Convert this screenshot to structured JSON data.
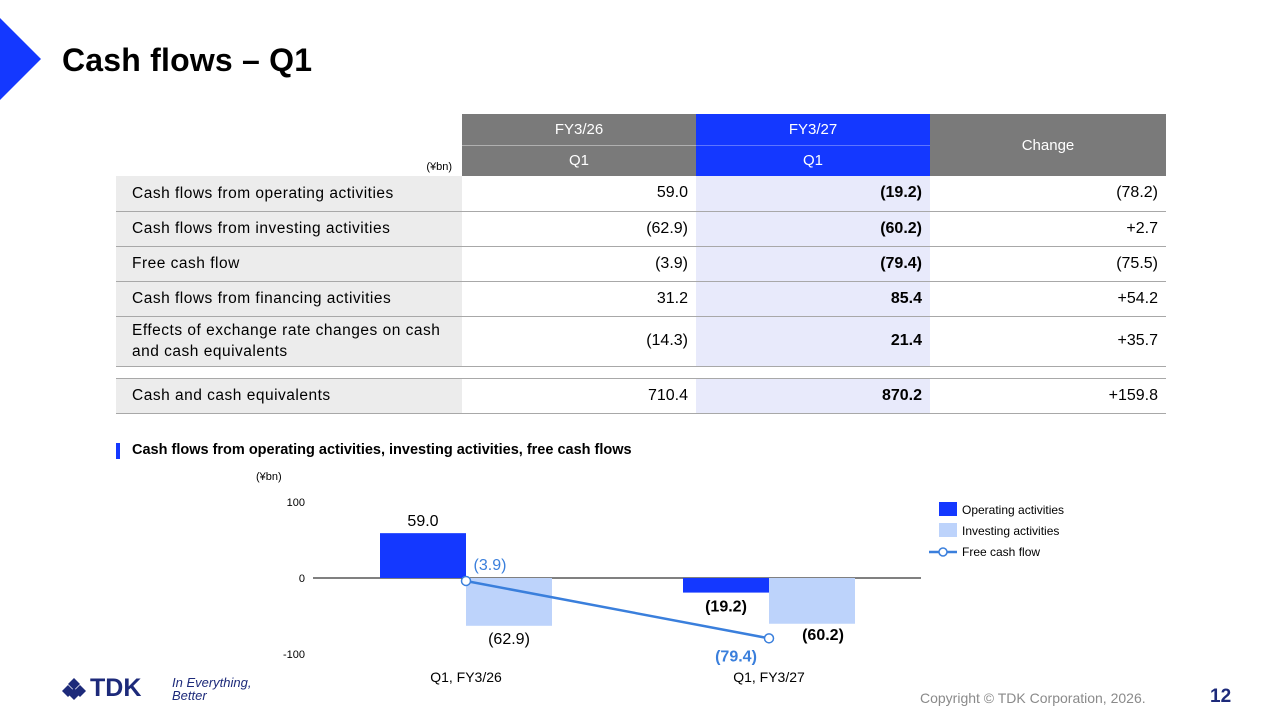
{
  "title": "Cash flows – Q1",
  "table": {
    "unit": "(¥bn)",
    "col_fy26": "FY3/26",
    "col_fy27": "FY3/27",
    "col_change": "Change",
    "q_fy26": "Q1",
    "q_fy27": "Q1",
    "rows": [
      {
        "label": "Cash flows from operating activities",
        "fy26": "59.0",
        "fy27": "(19.2)",
        "change": "(78.2)"
      },
      {
        "label": "Cash flows from investing activities",
        "fy26": "(62.9)",
        "fy27": "(60.2)",
        "change": "+2.7"
      },
      {
        "label": "Free cash flow",
        "fy26": "(3.9)",
        "fy27": "(79.4)",
        "change": "(75.5)"
      },
      {
        "label": "Cash flows from financing activities",
        "fy26": "31.2",
        "fy27": "85.4",
        "change": "+54.2"
      },
      {
        "label": "Effects of exchange rate changes on cash and cash equivalents",
        "fy26": "(14.3)",
        "fy27": "21.4",
        "change": "+35.7"
      }
    ],
    "cash_row": {
      "label": "Cash and cash equivalents",
      "fy26": "710.4",
      "fy27": "870.2",
      "change": "+159.8"
    }
  },
  "chart_title": "Cash flows from operating activities, investing activities, free cash flows",
  "chart_data": {
    "type": "bar",
    "unit": "(¥bn)",
    "categories": [
      "Q1, FY3/26",
      "Q1, FY3/27"
    ],
    "series": [
      {
        "name": "Operating activities",
        "kind": "bar",
        "values": [
          59.0,
          -19.2
        ],
        "labels": [
          "59.0",
          "(19.2)"
        ],
        "color": "#1438ff"
      },
      {
        "name": "Investing activities",
        "kind": "bar",
        "values": [
          -62.9,
          -60.2
        ],
        "labels": [
          "(62.9)",
          "(60.2)"
        ],
        "color": "#bdd3fb"
      },
      {
        "name": "Free cash flow",
        "kind": "line",
        "values": [
          -3.9,
          -79.4
        ],
        "labels": [
          "(3.9)",
          "(79.4)"
        ],
        "color": "#3a7fdc"
      }
    ],
    "y_ticks": [
      100,
      0,
      -100
    ],
    "ylim": [
      -100,
      100
    ],
    "legend": "right"
  },
  "footer": {
    "logo": "TDK",
    "tagline_line1": "In Everything,",
    "tagline_line2": "Better",
    "copyright": "Copyright © TDK Corporation, 2026.",
    "page": "12"
  },
  "colors": {
    "brand_blue": "#1438ff",
    "header_gray": "#7a7a7a",
    "highlight": "#e8eafb"
  }
}
